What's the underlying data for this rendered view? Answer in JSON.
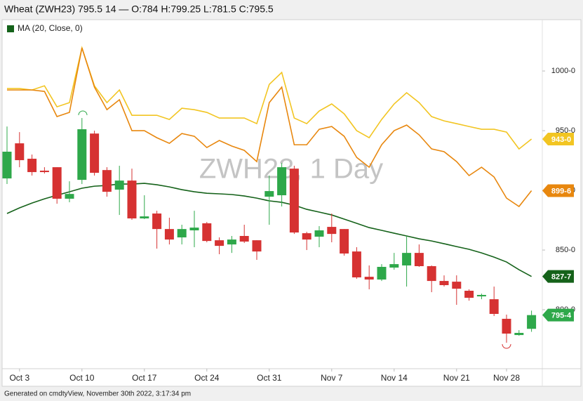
{
  "header": {
    "title": "Wheat (ZWH23) 795.5 14 — O:784 H:799.25 L:781.5 C:795.5"
  },
  "chart_data": {
    "type": "candlestick",
    "watermark": "ZWH23, 1 Day",
    "categories": [
      null,
      "Oct 3",
      null,
      null,
      null,
      null,
      "Oct 10",
      null,
      null,
      null,
      null,
      "Oct 17",
      null,
      null,
      null,
      null,
      "Oct 24",
      null,
      null,
      null,
      null,
      "Oct 31",
      null,
      null,
      null,
      null,
      "Nov 7",
      null,
      null,
      null,
      null,
      "Nov 14",
      null,
      null,
      null,
      null,
      "Nov 21",
      null,
      null,
      null,
      "Nov 28",
      null,
      null
    ],
    "open": [
      910,
      939.4,
      926.5,
      916.5,
      919.4,
      893,
      908.8,
      947.6,
      917,
      900.6,
      908.2,
      876.5,
      880.6,
      867.6,
      860.6,
      866.5,
      872.4,
      858.2,
      854.7,
      861.8,
      858.2,
      894.7,
      895.9,
      918.2,
      864.1,
      861.2,
      869.4,
      867.6,
      848.8,
      827.6,
      825.3,
      835.3,
      837.1,
      847.6,
      836.5,
      824.1,
      823.5,
      815.9,
      811.2,
      808.8,
      792.4,
      778.8,
      784
    ],
    "high": [
      953.5,
      948.8,
      930,
      919.4,
      919.4,
      907.6,
      960.6,
      950,
      919.4,
      920.6,
      918.2,
      895.9,
      882.9,
      877.1,
      871.2,
      882.9,
      873.5,
      860.6,
      861.8,
      871.2,
      858.2,
      912.4,
      922.9,
      920.6,
      865.3,
      870,
      880.6,
      867.6,
      852.4,
      837.1,
      838.2,
      847.6,
      861.8,
      854.7,
      837.1,
      828.8,
      828.8,
      817.1,
      813.5,
      819.4,
      795.9,
      782.9,
      799.25
    ],
    "low": [
      905.3,
      919.4,
      912.4,
      914.1,
      888.8,
      890,
      905.3,
      912.4,
      894.7,
      879.4,
      875.3,
      875.9,
      851.2,
      854.7,
      854.7,
      852.4,
      856.5,
      846.5,
      847.6,
      855.9,
      841.8,
      871.2,
      886.5,
      863.5,
      850,
      852.4,
      856.5,
      845.3,
      825.9,
      817.1,
      824.1,
      833.5,
      819.4,
      835.9,
      814.7,
      819.4,
      804.1,
      807.6,
      808.8,
      794.7,
      772.4,
      778.2,
      781.5
    ],
    "close": [
      932.4,
      925.3,
      915.3,
      915.3,
      893,
      897,
      951.2,
      914.7,
      898.8,
      908.2,
      876.5,
      878.2,
      867.6,
      858.8,
      867.6,
      868.8,
      857.6,
      853.5,
      858.8,
      857.1,
      848.8,
      899.4,
      919.4,
      864.7,
      858.8,
      866.5,
      863.5,
      847.1,
      827.1,
      825.3,
      835.9,
      838.2,
      847.6,
      836.5,
      824.1,
      820.6,
      817.6,
      810,
      812.4,
      796.5,
      780,
      780.6,
      795.5
    ],
    "close_labels": [
      null,
      null,
      null,
      null,
      null,
      null,
      null,
      null,
      null,
      null,
      null,
      null,
      null,
      null,
      null,
      null,
      null,
      null,
      null,
      null,
      null,
      null,
      null,
      null,
      null,
      null,
      null,
      null,
      null,
      null,
      null,
      null,
      null,
      null,
      null,
      null,
      null,
      null,
      null,
      null,
      null,
      null,
      "795-4"
    ],
    "up_color": "#2ea84a",
    "down_color": "#d63232",
    "series": [
      {
        "color": "#f2c522",
        "values": [
          985.3,
          985.3,
          984.1,
          987.6,
          970,
          973.5,
          1019.4,
          987.6,
          973.5,
          984.1,
          962.9,
          962.9,
          962.9,
          959.4,
          968.8,
          967.6,
          965.3,
          960.6,
          960.6,
          960.6,
          955.9,
          988.8,
          998.8,
          960.6,
          955.9,
          966.5,
          972.4,
          964.1,
          950,
          944.1,
          959.4,
          972.4,
          981.8,
          973.5,
          961.8,
          958.2,
          955.9,
          953.5,
          951.2,
          951.2,
          948.8,
          934.7,
          943
        ],
        "value_labels": [
          null,
          null,
          null,
          null,
          null,
          null,
          null,
          null,
          null,
          null,
          null,
          null,
          null,
          null,
          null,
          null,
          null,
          null,
          null,
          null,
          null,
          null,
          null,
          null,
          null,
          null,
          null,
          null,
          null,
          null,
          null,
          null,
          null,
          null,
          null,
          null,
          null,
          null,
          null,
          null,
          null,
          null,
          "943-0"
        ]
      },
      {
        "color": "#e8870e",
        "values": [
          984.1,
          984.1,
          984.1,
          982.9,
          961.8,
          965.3,
          1019.4,
          986.5,
          967.6,
          975.9,
          950,
          950,
          944.1,
          939.4,
          947.6,
          945.3,
          935.9,
          941.8,
          937.1,
          933.5,
          924.1,
          973.5,
          986.5,
          938.2,
          938.2,
          951.2,
          953.5,
          945.3,
          927.6,
          919.4,
          938.2,
          950,
          954.7,
          946.5,
          934.7,
          932.4,
          924.1,
          912.4,
          919.4,
          911.2,
          893.5,
          886.5,
          899.75
        ],
        "value_labels": [
          null,
          null,
          null,
          null,
          null,
          null,
          null,
          null,
          null,
          null,
          null,
          null,
          null,
          null,
          null,
          null,
          null,
          null,
          null,
          null,
          null,
          null,
          null,
          null,
          null,
          null,
          null,
          null,
          null,
          null,
          null,
          null,
          null,
          null,
          null,
          null,
          null,
          null,
          null,
          null,
          null,
          null,
          "899-6"
        ]
      },
      {
        "name": "MA (20, Close, 0)",
        "color": "#15621a",
        "values": [
          880.6,
          885.3,
          889.4,
          892.9,
          895.9,
          898.8,
          901.8,
          903.5,
          904.1,
          905.3,
          905.3,
          905.9,
          904.7,
          902.9,
          900.6,
          898.8,
          897.6,
          897.1,
          896.5,
          895.3,
          893.5,
          891.2,
          890,
          887.6,
          884.1,
          881.8,
          879.4,
          875.9,
          872.4,
          868.8,
          866.5,
          864.1,
          861.8,
          859.4,
          857.6,
          855.3,
          852.9,
          850.6,
          847.6,
          844.1,
          840,
          833.5,
          827.875
        ],
        "value_labels": [
          null,
          null,
          null,
          null,
          null,
          null,
          null,
          null,
          null,
          null,
          null,
          null,
          null,
          null,
          null,
          null,
          null,
          null,
          null,
          null,
          null,
          null,
          null,
          null,
          null,
          null,
          null,
          null,
          null,
          null,
          null,
          null,
          null,
          null,
          null,
          null,
          null,
          null,
          null,
          null,
          null,
          null,
          "827-7"
        ]
      }
    ],
    "ylim": [
      750.6,
      1043
    ],
    "yticks": [
      {
        "value": 800,
        "label": "800-0"
      },
      {
        "value": 850,
        "label": "850-0"
      },
      {
        "value": 900,
        "label": "900-0"
      },
      {
        "value": 950,
        "label": "950-0"
      },
      {
        "value": 1000,
        "label": "1000-0"
      }
    ],
    "grid": false
  },
  "footer": "Generated on cmdtyView, November 30th 2022, 3:17:34 pm"
}
